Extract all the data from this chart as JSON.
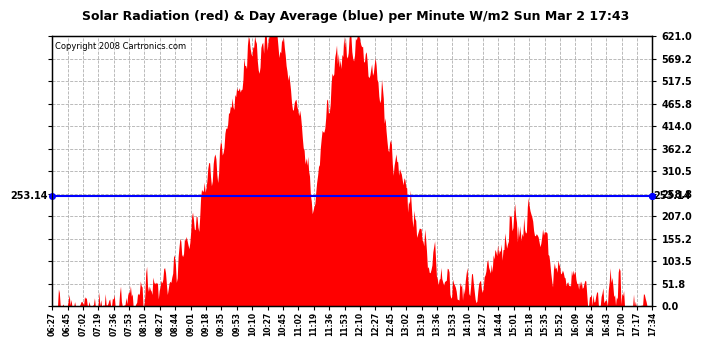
{
  "title": "Solar Radiation (red) & Day Average (blue) per Minute W/m2 Sun Mar 2 17:43",
  "copyright": "Copyright 2008 Cartronics.com",
  "ymin": 0.0,
  "ymax": 621.0,
  "yticks": [
    0.0,
    51.8,
    103.5,
    155.2,
    207.0,
    258.8,
    310.5,
    362.2,
    414.0,
    465.8,
    517.5,
    569.2,
    621.0
  ],
  "ytick_labels": [
    "0.0",
    "51.8",
    "103.5",
    "155.2",
    "207.0",
    "258.8",
    "310.5",
    "362.2",
    "414.0",
    "465.8",
    "517.5",
    "569.2",
    "621.0"
  ],
  "avg_line": 253.14,
  "avg_label": "253.14",
  "bg_color": "#ffffff",
  "fill_color": "#ff0000",
  "line_color": "#0000ff",
  "grid_color": "#b0b0b0",
  "xtick_labels": [
    "06:27",
    "06:45",
    "07:02",
    "07:19",
    "07:36",
    "07:53",
    "08:10",
    "08:27",
    "08:44",
    "09:01",
    "09:18",
    "09:35",
    "09:53",
    "10:10",
    "10:27",
    "10:45",
    "11:02",
    "11:19",
    "11:36",
    "11:53",
    "12:10",
    "12:27",
    "12:45",
    "13:02",
    "13:19",
    "13:36",
    "13:53",
    "14:10",
    "14:27",
    "14:44",
    "15:01",
    "15:18",
    "15:35",
    "15:52",
    "16:09",
    "16:26",
    "16:43",
    "17:00",
    "17:17",
    "17:34"
  ]
}
